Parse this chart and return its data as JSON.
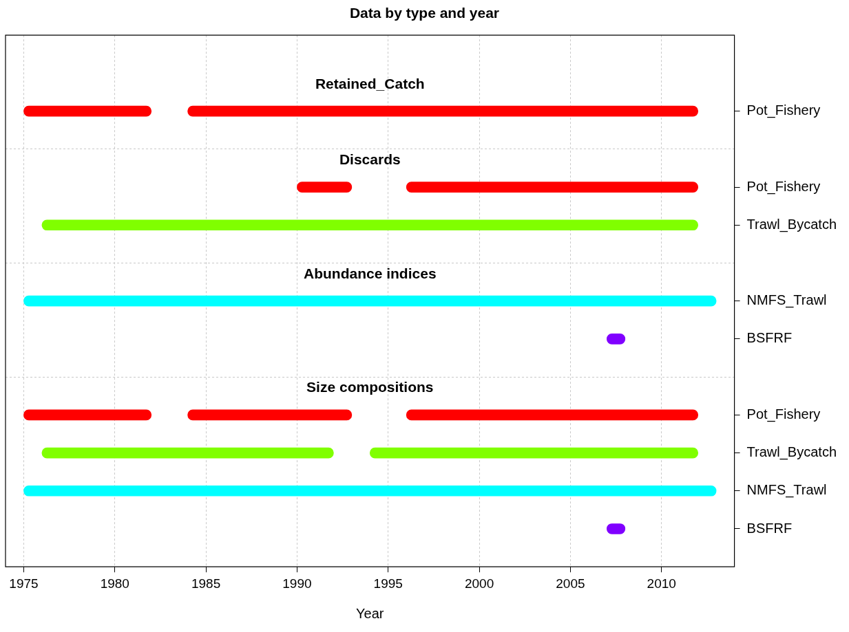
{
  "chart_data": {
    "type": "bar",
    "orientation": "horizontal",
    "title": "Data by type and year",
    "xlabel": "Year",
    "categories": [
      "Pot_Fishery",
      null,
      "Pot_Fishery",
      "Trawl_Bycatch",
      null,
      "NMFS_Trawl",
      "BSFRF",
      null,
      "Pot_Fishery",
      "Trawl_Bycatch",
      "NMFS_Trawl",
      "BSFRF"
    ],
    "series": [
      {
        "colors": [
          "#ff0000",
          null,
          "#ff0000",
          "#80ff00",
          null,
          "#00ffff",
          "#8000ff",
          null,
          "#ff0000",
          "#80ff00",
          "#00ffff",
          "#8000ff"
        ],
        "base": [
          1975,
          null,
          1990,
          1976,
          null,
          1975,
          2007,
          null,
          1975,
          1976,
          1975,
          2007
        ],
        "values": [
          7,
          null,
          3,
          36,
          null,
          38,
          1,
          null,
          7,
          16,
          38,
          1
        ]
      },
      {
        "colors": [
          "#ff0000",
          null,
          "#ff0000",
          null,
          null,
          null,
          null,
          null,
          "#ff0000",
          "#80ff00",
          null,
          null
        ],
        "base": [
          1984,
          null,
          1996,
          null,
          null,
          null,
          null,
          null,
          1984,
          1994,
          null,
          null
        ],
        "values": [
          28,
          null,
          16,
          null,
          null,
          null,
          null,
          null,
          9,
          18,
          null,
          null
        ]
      },
      {
        "colors": [
          null,
          null,
          null,
          null,
          null,
          null,
          null,
          null,
          "#ff0000",
          null,
          null,
          null
        ],
        "base": [
          null,
          null,
          null,
          null,
          null,
          null,
          null,
          null,
          1996,
          null,
          null,
          null
        ],
        "values": [
          null,
          null,
          null,
          null,
          null,
          null,
          null,
          null,
          16,
          null,
          null,
          null
        ]
      }
    ],
    "annotations": [
      "Retained_Catch",
      "Discards",
      "Abundance indices",
      "Size compositions"
    ],
    "xlim": [
      1974,
      2014
    ],
    "xticks": [
      1975,
      1980,
      1985,
      1990,
      1995,
      2000,
      2005,
      2010
    ],
    "grid": true,
    "legend": false
  }
}
